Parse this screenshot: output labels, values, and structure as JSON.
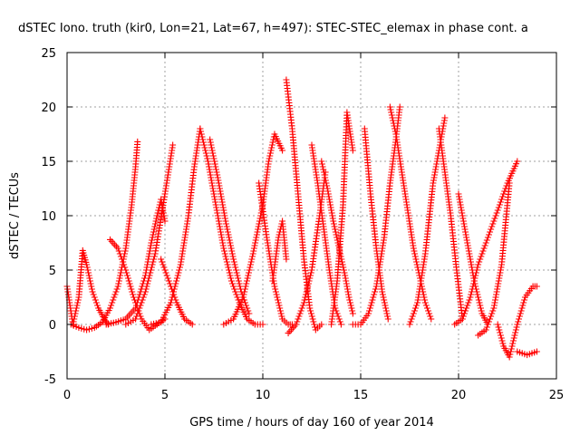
{
  "chart_data": {
    "type": "scatter",
    "title": "dSTEC Iono. truth (kir0, Lon=21, Lat=67, h=497): STEC-STEC_elemax in phase cont. a",
    "xlabel": "GPS time / hours of day 160 of year 2014",
    "ylabel": "dSTEC  / TECUs",
    "xlim": [
      0,
      25
    ],
    "ylim": [
      -5,
      25
    ],
    "xticks": [
      "0",
      "5",
      "10",
      "15",
      "20",
      "25"
    ],
    "yticks": [
      "-5",
      "0",
      "5",
      "10",
      "15",
      "20",
      "25"
    ],
    "grid": true,
    "legend": "none",
    "marker": "plus",
    "color": "#ff0000",
    "series": [
      {
        "x": [
          0.0,
          0.3,
          0.6,
          0.8,
          1.0,
          1.3,
          1.6,
          1.9,
          2.1
        ],
        "y": [
          3.5,
          0.0,
          2.5,
          6.8,
          5.5,
          3.0,
          1.5,
          0.5,
          0.0
        ]
      },
      {
        "x": [
          0.2,
          0.6,
          1.0,
          1.4,
          1.8,
          2.2,
          2.6,
          3.0,
          3.3,
          3.5,
          3.6
        ],
        "y": [
          0.0,
          -0.3,
          -0.5,
          -0.3,
          0.2,
          1.5,
          3.5,
          7.0,
          11.0,
          14.5,
          16.8
        ]
      },
      {
        "x": [
          2.2,
          2.6,
          3.0,
          3.4,
          3.8,
          4.2,
          4.6,
          5.0
        ],
        "y": [
          7.8,
          7.0,
          5.0,
          2.5,
          0.5,
          -0.5,
          0.0,
          0.5
        ]
      },
      {
        "x": [
          2.0,
          2.5,
          3.0,
          3.5,
          4.0,
          4.3,
          4.6,
          4.8,
          5.0
        ],
        "y": [
          0.0,
          0.2,
          0.5,
          1.5,
          4.5,
          7.5,
          10.0,
          11.5,
          9.5
        ]
      },
      {
        "x": [
          3.0,
          3.5,
          4.0,
          4.5,
          5.0,
          5.4
        ],
        "y": [
          0.0,
          0.5,
          3.0,
          6.5,
          12.0,
          16.5
        ]
      },
      {
        "x": [
          4.3,
          4.8,
          5.3,
          5.8,
          6.2,
          6.5,
          6.8
        ],
        "y": [
          0.0,
          0.2,
          2.0,
          5.5,
          10.0,
          14.5,
          18.0
        ]
      },
      {
        "x": [
          4.8,
          5.2,
          5.6,
          6.0,
          6.4
        ],
        "y": [
          6.0,
          4.0,
          2.0,
          0.5,
          0.0
        ]
      },
      {
        "x": [
          6.8,
          7.2,
          7.6,
          8.0,
          8.4,
          8.8,
          9.2,
          9.6,
          10.0
        ],
        "y": [
          18.0,
          15.0,
          11.0,
          7.0,
          4.0,
          2.0,
          0.5,
          0.0,
          0.0
        ]
      },
      {
        "x": [
          7.3,
          7.7,
          8.1,
          8.5,
          8.9,
          9.3
        ],
        "y": [
          17.0,
          13.5,
          9.5,
          6.0,
          3.0,
          1.0
        ]
      },
      {
        "x": [
          8.0,
          8.5,
          9.0,
          9.5,
          10.0,
          10.3,
          10.6,
          11.0
        ],
        "y": [
          0.0,
          0.5,
          2.5,
          6.5,
          11.0,
          15.0,
          17.5,
          16.0
        ]
      },
      {
        "x": [
          9.8,
          10.2,
          10.6,
          11.0,
          11.3,
          11.5
        ],
        "y": [
          13.0,
          8.0,
          3.5,
          0.5,
          0.0,
          0.0
        ]
      },
      {
        "x": [
          10.5,
          10.8,
          11.0,
          11.2
        ],
        "y": [
          4.0,
          8.0,
          9.5,
          6.0
        ]
      },
      {
        "x": [
          11.2,
          11.5,
          11.8,
          12.1,
          12.4,
          12.7,
          13.0
        ],
        "y": [
          22.5,
          18.0,
          12.0,
          6.0,
          1.5,
          -0.5,
          0.0
        ]
      },
      {
        "x": [
          11.3,
          11.7,
          12.1,
          12.5,
          12.9,
          13.2
        ],
        "y": [
          -0.8,
          0.0,
          2.0,
          5.0,
          10.0,
          14.0
        ]
      },
      {
        "x": [
          12.5,
          12.8,
          13.1,
          13.4,
          13.7,
          14.0
        ],
        "y": [
          16.5,
          13.0,
          9.0,
          5.0,
          1.5,
          0.0
        ]
      },
      {
        "x": [
          13.0,
          13.3,
          13.6,
          13.9,
          14.2,
          14.4,
          14.6
        ],
        "y": [
          15.0,
          12.5,
          9.5,
          7.0,
          4.5,
          2.5,
          1.0
        ]
      },
      {
        "x": [
          13.5,
          13.8,
          14.1,
          14.3,
          14.6
        ],
        "y": [
          0.0,
          4.0,
          11.0,
          19.5,
          16.0
        ]
      },
      {
        "x": [
          14.6,
          15.0,
          15.4,
          15.8,
          16.2,
          16.5,
          16.8,
          17.0
        ],
        "y": [
          0.0,
          0.0,
          1.0,
          3.5,
          8.0,
          13.0,
          17.0,
          20.0
        ]
      },
      {
        "x": [
          15.2,
          15.5,
          15.8,
          16.1,
          16.4
        ],
        "y": [
          18.0,
          12.0,
          7.0,
          3.0,
          0.5
        ]
      },
      {
        "x": [
          16.5,
          16.8,
          17.1,
          17.4,
          17.7,
          18.0,
          18.3,
          18.6
        ],
        "y": [
          20.0,
          17.5,
          14.0,
          10.5,
          7.0,
          4.5,
          2.0,
          0.5
        ]
      },
      {
        "x": [
          17.5,
          17.9,
          18.3,
          18.7,
          19.0,
          19.3
        ],
        "y": [
          0.0,
          2.0,
          6.5,
          13.0,
          16.0,
          19.0
        ]
      },
      {
        "x": [
          19.0,
          19.3,
          19.6,
          19.9,
          20.2
        ],
        "y": [
          18.0,
          14.0,
          10.0,
          5.0,
          0.5
        ]
      },
      {
        "x": [
          19.8,
          20.2,
          20.6,
          21.0,
          21.5,
          22.0,
          22.5,
          23.0
        ],
        "y": [
          0.0,
          0.5,
          2.5,
          5.5,
          8.0,
          10.5,
          13.0,
          15.0
        ]
      },
      {
        "x": [
          20.0,
          20.4,
          20.8,
          21.2,
          21.5
        ],
        "y": [
          12.0,
          8.0,
          4.0,
          1.0,
          0.0
        ]
      },
      {
        "x": [
          21.0,
          21.4,
          21.8,
          22.2,
          22.6
        ],
        "y": [
          -1.0,
          -0.5,
          1.5,
          5.5,
          13.0
        ]
      },
      {
        "x": [
          22.0,
          22.3,
          22.6,
          23.0,
          23.4,
          23.8,
          24.0
        ],
        "y": [
          0.0,
          -2.0,
          -3.0,
          0.0,
          2.5,
          3.5,
          3.5
        ]
      },
      {
        "x": [
          23.0,
          23.5,
          24.0
        ],
        "y": [
          -2.5,
          -2.8,
          -2.5
        ]
      }
    ]
  }
}
